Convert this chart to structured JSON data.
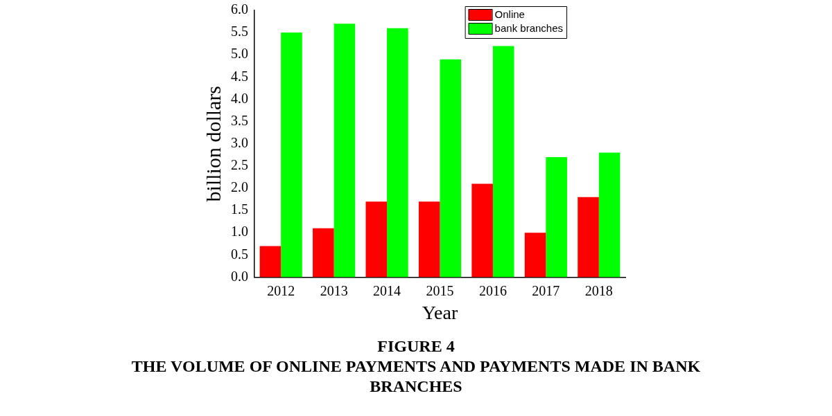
{
  "chart_data": {
    "type": "bar",
    "title": "FIGURE 4",
    "subtitle": "THE VOLUME OF ONLINE PAYMENTS AND PAYMENTS MADE IN BANK BRANCHES",
    "xlabel": "Year",
    "ylabel": "billion dollars",
    "categories": [
      "2012",
      "2013",
      "2014",
      "2015",
      "2016",
      "2017",
      "2018"
    ],
    "series": [
      {
        "name": "Online",
        "color": "#ff0000",
        "values": [
          0.7,
          1.1,
          1.7,
          1.7,
          2.1,
          1.0,
          1.8
        ]
      },
      {
        "name": "bank branches",
        "color": "#00ff00",
        "values": [
          5.5,
          5.7,
          5.6,
          4.9,
          5.2,
          2.7,
          2.8
        ]
      }
    ],
    "ylim": [
      0,
      6
    ],
    "yticks": [
      {
        "value": 0,
        "label": "0.0"
      },
      0.5,
      {
        "value": 1,
        "label": "1.0"
      },
      1.5,
      {
        "value": 2,
        "label": "2.0"
      },
      2.5,
      {
        "value": 3,
        "label": "3.0"
      },
      3.5,
      {
        "value": 4,
        "label": "4.0"
      },
      4.5,
      {
        "value": 5,
        "label": "5.0"
      },
      5.5,
      {
        "value": 6,
        "label": "6.0"
      }
    ],
    "grid": false,
    "legend": "top right"
  }
}
